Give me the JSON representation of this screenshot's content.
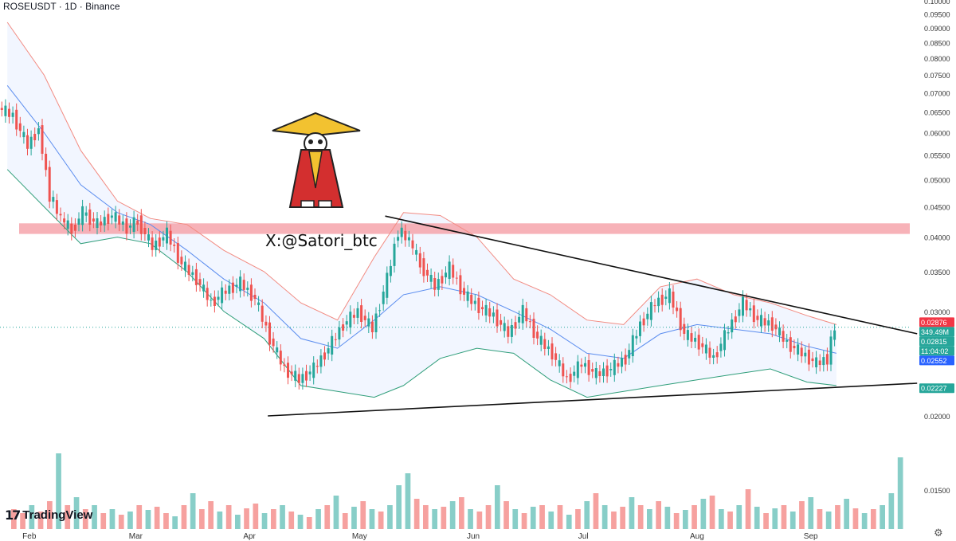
{
  "header": {
    "symbol_line": "ROSEUSDT · 1D · Binance"
  },
  "watermark": {
    "handle": "X:@Satori_btc"
  },
  "branding": {
    "logo_text": "TradingView",
    "logo_mark": "17"
  },
  "icons": {
    "settings": "gear-icon"
  },
  "colors": {
    "up": "#26a69a",
    "down": "#ef5350",
    "band_upper": "#f28b82",
    "band_mid": "#5b8def",
    "band_lower": "#2f9e7a",
    "zone": "#f6a5ab"
  },
  "price_labels": [
    {
      "text": "0.02876",
      "bg": "#f23645"
    },
    {
      "text": "349.49M",
      "bg": "#26a69a"
    },
    {
      "text": "0.02815",
      "bg": "#26a69a"
    },
    {
      "text": "11:04:02",
      "bg": "#26a69a"
    },
    {
      "text": "0.02552",
      "bg": "#2962ff"
    },
    {
      "text": "0.02227",
      "bg": "#26a69a"
    }
  ],
  "chart_data": {
    "type": "candlestick",
    "title": "ROSEUSDT · 1D · Binance",
    "y_scale": "log",
    "ylim": [
      0.0129,
      0.1003
    ],
    "y_ticks": [
      "0.10000",
      "0.09500",
      "0.09000",
      "0.08500",
      "0.08000",
      "0.07500",
      "0.07000",
      "0.06500",
      "0.06000",
      "0.05500",
      "0.05000",
      "0.04500",
      "0.04000",
      "0.03500",
      "0.03000",
      "0.02500",
      "0.02000",
      "0.01500"
    ],
    "x_ticks": [
      "Feb",
      "Mar",
      "Apr",
      "May",
      "Jun",
      "Jul",
      "Aug",
      "Sep"
    ],
    "x_tick_dates": [
      "2024-02-01",
      "2024-03-01",
      "2024-04-01",
      "2024-05-01",
      "2024-06-01",
      "2024-07-01",
      "2024-08-01",
      "2024-09-01"
    ],
    "x_range": [
      "2024-01-24",
      "2024-09-28"
    ],
    "close_path": [
      [
        "2024-01-24",
        0.066
      ],
      [
        "2024-01-28",
        0.064
      ],
      [
        "2024-02-01",
        0.057
      ],
      [
        "2024-02-04",
        0.061
      ],
      [
        "2024-02-07",
        0.047
      ],
      [
        "2024-02-10",
        0.043
      ],
      [
        "2024-02-13",
        0.041
      ],
      [
        "2024-02-16",
        0.044
      ],
      [
        "2024-02-20",
        0.042
      ],
      [
        "2024-02-24",
        0.0435
      ],
      [
        "2024-02-28",
        0.0415
      ],
      [
        "2024-03-02",
        0.0425
      ],
      [
        "2024-03-06",
        0.0385
      ],
      [
        "2024-03-10",
        0.0405
      ],
      [
        "2024-03-14",
        0.036
      ],
      [
        "2024-03-18",
        0.034
      ],
      [
        "2024-03-22",
        0.031
      ],
      [
        "2024-03-26",
        0.0325
      ],
      [
        "2024-03-30",
        0.0335
      ],
      [
        "2024-04-03",
        0.0315
      ],
      [
        "2024-04-07",
        0.027
      ],
      [
        "2024-04-11",
        0.024
      ],
      [
        "2024-04-15",
        0.023
      ],
      [
        "2024-04-19",
        0.024
      ],
      [
        "2024-04-23",
        0.026
      ],
      [
        "2024-04-27",
        0.0285
      ],
      [
        "2024-05-01",
        0.03
      ],
      [
        "2024-05-05",
        0.028
      ],
      [
        "2024-05-09",
        0.034
      ],
      [
        "2024-05-12",
        0.041
      ],
      [
        "2024-05-15",
        0.0395
      ],
      [
        "2024-05-18",
        0.036
      ],
      [
        "2024-05-22",
        0.033
      ],
      [
        "2024-05-26",
        0.0355
      ],
      [
        "2024-05-30",
        0.032
      ],
      [
        "2024-06-03",
        0.0305
      ],
      [
        "2024-06-07",
        0.0295
      ],
      [
        "2024-06-11",
        0.0275
      ],
      [
        "2024-06-15",
        0.03
      ],
      [
        "2024-06-19",
        0.027
      ],
      [
        "2024-06-23",
        0.0255
      ],
      [
        "2024-06-27",
        0.023
      ],
      [
        "2024-07-01",
        0.0245
      ],
      [
        "2024-07-05",
        0.0235
      ],
      [
        "2024-07-09",
        0.024
      ],
      [
        "2024-07-13",
        0.025
      ],
      [
        "2024-07-17",
        0.0285
      ],
      [
        "2024-07-21",
        0.031
      ],
      [
        "2024-07-25",
        0.032
      ],
      [
        "2024-07-29",
        0.0275
      ],
      [
        "2024-08-02",
        0.0265
      ],
      [
        "2024-08-06",
        0.025
      ],
      [
        "2024-08-10",
        0.028
      ],
      [
        "2024-08-14",
        0.031
      ],
      [
        "2024-08-18",
        0.029
      ],
      [
        "2024-08-22",
        0.0285
      ],
      [
        "2024-08-26",
        0.0265
      ],
      [
        "2024-08-30",
        0.0255
      ],
      [
        "2024-09-03",
        0.0245
      ],
      [
        "2024-09-06",
        0.025
      ],
      [
        "2024-09-08",
        0.0282
      ]
    ],
    "bollinger_upper": [
      [
        "2024-01-26",
        0.092
      ],
      [
        "2024-02-05",
        0.075
      ],
      [
        "2024-02-15",
        0.056
      ],
      [
        "2024-02-25",
        0.046
      ],
      [
        "2024-03-05",
        0.043
      ],
      [
        "2024-03-15",
        0.042
      ],
      [
        "2024-03-25",
        0.038
      ],
      [
        "2024-04-05",
        0.035
      ],
      [
        "2024-04-15",
        0.031
      ],
      [
        "2024-04-25",
        0.029
      ],
      [
        "2024-05-05",
        0.037
      ],
      [
        "2024-05-13",
        0.044
      ],
      [
        "2024-05-23",
        0.0435
      ],
      [
        "2024-06-02",
        0.04
      ],
      [
        "2024-06-12",
        0.034
      ],
      [
        "2024-06-22",
        0.032
      ],
      [
        "2024-07-02",
        0.029
      ],
      [
        "2024-07-12",
        0.0285
      ],
      [
        "2024-07-22",
        0.033
      ],
      [
        "2024-08-01",
        0.034
      ],
      [
        "2024-08-11",
        0.032
      ],
      [
        "2024-08-21",
        0.031
      ],
      [
        "2024-08-31",
        0.0295
      ],
      [
        "2024-09-08",
        0.0285
      ]
    ],
    "bollinger_middle": [
      [
        "2024-01-26",
        0.072
      ],
      [
        "2024-02-05",
        0.06
      ],
      [
        "2024-02-15",
        0.049
      ],
      [
        "2024-02-25",
        0.044
      ],
      [
        "2024-03-05",
        0.042
      ],
      [
        "2024-03-15",
        0.038
      ],
      [
        "2024-03-25",
        0.034
      ],
      [
        "2024-04-05",
        0.031
      ],
      [
        "2024-04-15",
        0.027
      ],
      [
        "2024-04-25",
        0.026
      ],
      [
        "2024-05-05",
        0.029
      ],
      [
        "2024-05-13",
        0.032
      ],
      [
        "2024-05-23",
        0.033
      ],
      [
        "2024-06-02",
        0.032
      ],
      [
        "2024-06-12",
        0.03
      ],
      [
        "2024-06-22",
        0.028
      ],
      [
        "2024-07-02",
        0.0255
      ],
      [
        "2024-07-12",
        0.025
      ],
      [
        "2024-07-22",
        0.0275
      ],
      [
        "2024-08-01",
        0.0285
      ],
      [
        "2024-08-11",
        0.028
      ],
      [
        "2024-08-21",
        0.0275
      ],
      [
        "2024-08-31",
        0.0262
      ],
      [
        "2024-09-08",
        0.0255
      ]
    ],
    "bollinger_lower": [
      [
        "2024-01-26",
        0.052
      ],
      [
        "2024-02-05",
        0.045
      ],
      [
        "2024-02-15",
        0.039
      ],
      [
        "2024-02-25",
        0.04
      ],
      [
        "2024-03-05",
        0.039
      ],
      [
        "2024-03-15",
        0.035
      ],
      [
        "2024-03-25",
        0.03
      ],
      [
        "2024-04-05",
        0.027
      ],
      [
        "2024-04-15",
        0.0225
      ],
      [
        "2024-04-25",
        0.022
      ],
      [
        "2024-05-05",
        0.0215
      ],
      [
        "2024-05-13",
        0.0225
      ],
      [
        "2024-05-23",
        0.025
      ],
      [
        "2024-06-02",
        0.026
      ],
      [
        "2024-06-12",
        0.0255
      ],
      [
        "2024-06-22",
        0.023
      ],
      [
        "2024-07-02",
        0.0215
      ],
      [
        "2024-07-12",
        0.022
      ],
      [
        "2024-07-22",
        0.0225
      ],
      [
        "2024-08-01",
        0.023
      ],
      [
        "2024-08-11",
        0.0235
      ],
      [
        "2024-08-21",
        0.024
      ],
      [
        "2024-08-31",
        0.0228
      ],
      [
        "2024-09-08",
        0.0225
      ]
    ],
    "resistance_zone": [
      0.0405,
      0.0422
    ],
    "trendlines": [
      {
        "from": [
          "2024-05-08",
          0.0434
        ],
        "to": [
          "2024-09-30",
          0.0275
        ]
      },
      {
        "from": [
          "2024-04-06",
          0.02
        ],
        "to": [
          "2024-09-30",
          0.0227
        ]
      }
    ],
    "volume": {
      "max_ref": 1000,
      "values": [
        [
          0.25,
          0
        ],
        [
          0.2,
          0
        ],
        [
          0.3,
          1
        ],
        [
          0.22,
          0
        ],
        [
          0.35,
          0
        ],
        [
          0.95,
          1
        ],
        [
          0.3,
          0
        ],
        [
          0.4,
          1
        ],
        [
          0.25,
          0
        ],
        [
          0.3,
          1
        ],
        [
          0.2,
          0
        ],
        [
          0.25,
          1
        ],
        [
          0.18,
          0
        ],
        [
          0.22,
          1
        ],
        [
          0.3,
          0
        ],
        [
          0.24,
          1
        ],
        [
          0.28,
          0
        ],
        [
          0.2,
          0
        ],
        [
          0.16,
          1
        ],
        [
          0.3,
          0
        ],
        [
          0.45,
          1
        ],
        [
          0.25,
          0
        ],
        [
          0.35,
          0
        ],
        [
          0.22,
          1
        ],
        [
          0.3,
          0
        ],
        [
          0.18,
          1
        ],
        [
          0.26,
          0
        ],
        [
          0.32,
          0
        ],
        [
          0.2,
          1
        ],
        [
          0.25,
          0
        ],
        [
          0.3,
          1
        ],
        [
          0.22,
          0
        ],
        [
          0.18,
          1
        ],
        [
          0.15,
          0
        ],
        [
          0.25,
          1
        ],
        [
          0.3,
          0
        ],
        [
          0.42,
          1
        ],
        [
          0.2,
          0
        ],
        [
          0.28,
          1
        ],
        [
          0.35,
          0
        ],
        [
          0.25,
          1
        ],
        [
          0.22,
          0
        ],
        [
          0.3,
          1
        ],
        [
          0.55,
          1
        ],
        [
          0.7,
          1
        ],
        [
          0.38,
          0
        ],
        [
          0.3,
          0
        ],
        [
          0.25,
          1
        ],
        [
          0.28,
          0
        ],
        [
          0.35,
          1
        ],
        [
          0.4,
          0
        ],
        [
          0.25,
          1
        ],
        [
          0.22,
          0
        ],
        [
          0.3,
          0
        ],
        [
          0.55,
          1
        ],
        [
          0.35,
          0
        ],
        [
          0.25,
          1
        ],
        [
          0.2,
          0
        ],
        [
          0.28,
          1
        ],
        [
          0.3,
          0
        ],
        [
          0.22,
          1
        ],
        [
          0.3,
          0
        ],
        [
          0.18,
          1
        ],
        [
          0.25,
          0
        ],
        [
          0.35,
          1
        ],
        [
          0.45,
          0
        ],
        [
          0.3,
          1
        ],
        [
          0.22,
          0
        ],
        [
          0.28,
          0
        ],
        [
          0.4,
          1
        ],
        [
          0.3,
          0
        ],
        [
          0.25,
          1
        ],
        [
          0.35,
          0
        ],
        [
          0.28,
          1
        ],
        [
          0.2,
          0
        ],
        [
          0.24,
          1
        ],
        [
          0.3,
          0
        ],
        [
          0.38,
          1
        ],
        [
          0.42,
          0
        ],
        [
          0.25,
          1
        ],
        [
          0.22,
          0
        ],
        [
          0.3,
          1
        ],
        [
          0.5,
          0
        ],
        [
          0.28,
          1
        ],
        [
          0.2,
          0
        ],
        [
          0.26,
          1
        ],
        [
          0.3,
          0
        ],
        [
          0.22,
          1
        ],
        [
          0.35,
          0
        ],
        [
          0.4,
          1
        ],
        [
          0.25,
          0
        ],
        [
          0.22,
          1
        ],
        [
          0.3,
          0
        ],
        [
          0.38,
          1
        ],
        [
          0.26,
          0
        ],
        [
          0.2,
          1
        ],
        [
          0.25,
          0
        ],
        [
          0.3,
          1
        ],
        [
          0.45,
          1
        ],
        [
          0.9,
          1
        ]
      ]
    }
  }
}
